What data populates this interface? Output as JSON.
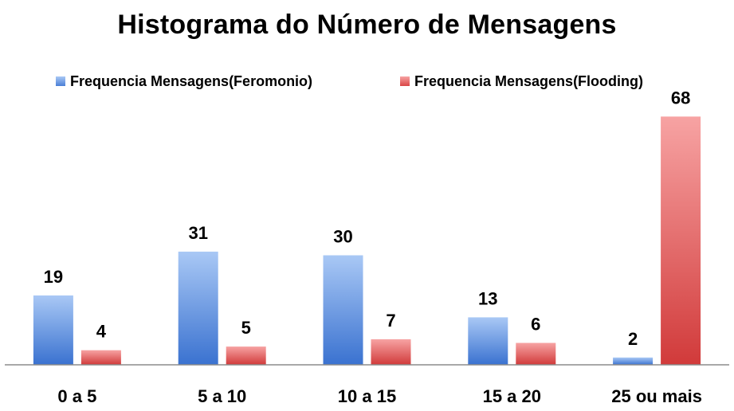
{
  "chart_data": {
    "type": "bar",
    "title": "Histograma do Número de Mensagens",
    "categories": [
      "0 a 5",
      "5 a 10",
      "10 a 15",
      "15 a 20",
      "25 ou mais"
    ],
    "series": [
      {
        "name": "Frequencia Mensagens(Feromonio)",
        "values": [
          19,
          31,
          30,
          13,
          2
        ],
        "color": "#4a7fd6"
      },
      {
        "name": "Frequencia Mensagens(Flooding)",
        "values": [
          4,
          5,
          7,
          6,
          68
        ],
        "color": "#d94545"
      }
    ],
    "ylim": [
      0,
      72
    ],
    "legend": "top",
    "grid": false,
    "data_labels": true
  }
}
